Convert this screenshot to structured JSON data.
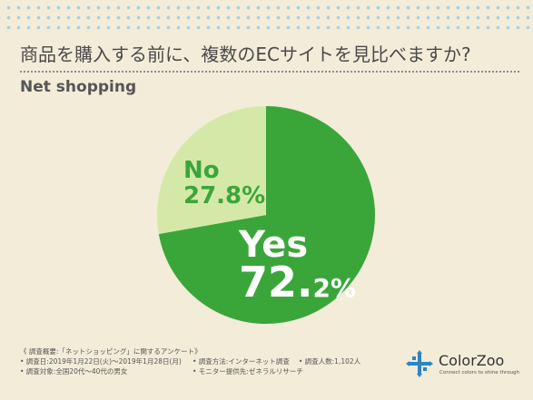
{
  "header": {
    "title": "商品を購入する前に、複数のECサイトを見比べますか?",
    "subtitle": "Net shopping"
  },
  "colors": {
    "yes_slice": "#3aa63a",
    "no_slice": "#d4e9a8",
    "no_label": "#3aa63a",
    "yes_label": "#ffffff",
    "background": "#f2ecd9"
  },
  "chart_data": {
    "type": "pie",
    "categories": [
      "Yes",
      "No"
    ],
    "values": [
      72.2,
      27.8
    ],
    "labels": [
      {
        "name": "Yes",
        "value_text": "72.2%",
        "big": "72.",
        "small": "2%"
      },
      {
        "name": "No",
        "value_text": "27.8%"
      }
    ]
  },
  "notes": {
    "heading": "《 調査概要:「ネットショッピング」に関するアンケート》",
    "date": "• 調査日:2019年1月22日(火)〜2019年1月28日(月)",
    "method": "• 調査方法:インターネット調査",
    "count": "• 調査人数:1,102人",
    "target": "• 調査対象:全国20代〜40代の男女",
    "provider": "• モニター提供先:ゼネラルリサーチ"
  },
  "logo": {
    "name": "ColorZoo",
    "tagline": "Connect colors to shine through"
  }
}
